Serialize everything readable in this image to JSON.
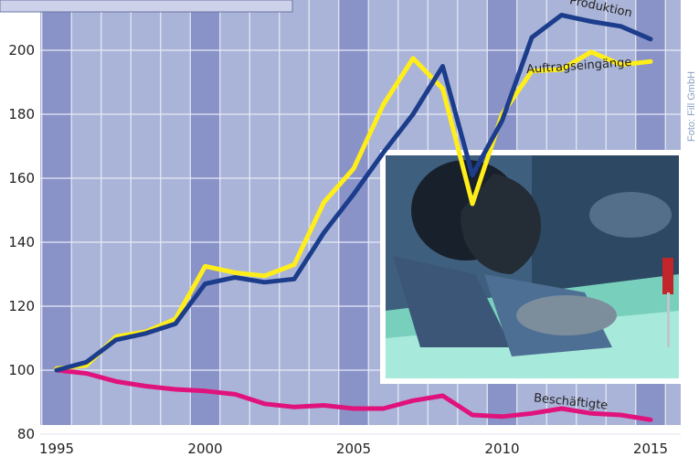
{
  "photo_credit": "Foto: Fill GmbH",
  "chart_data": {
    "type": "line",
    "xlim": [
      1995,
      2015
    ],
    "ylim": [
      80,
      210
    ],
    "grid": true,
    "x_ticks": [
      1995,
      2000,
      2005,
      2010,
      2015
    ],
    "y_ticks": [
      80,
      100,
      120,
      140,
      160,
      180,
      200
    ],
    "x": [
      1995,
      1996,
      1997,
      1998,
      1999,
      2000,
      2001,
      2002,
      2003,
      2004,
      2005,
      2006,
      2007,
      2008,
      2009,
      2010,
      2011,
      2012,
      2013,
      2014,
      2015
    ],
    "series": [
      {
        "name": "Produktion",
        "color": "#1c3d8c",
        "values": [
          100,
          102.5,
          109.5,
          111.5,
          114.5,
          127,
          129,
          127.5,
          128.5,
          143,
          155,
          168,
          180,
          195,
          161,
          178,
          204,
          211,
          209,
          207.5,
          203.5
        ]
      },
      {
        "name": "Auftragseingänge",
        "color": "#ffee1a",
        "values": [
          100.5,
          101.5,
          110.5,
          112,
          116,
          132.5,
          130.5,
          129.5,
          133,
          152.5,
          163,
          183,
          197.5,
          188,
          152,
          180,
          193.5,
          194,
          199.5,
          195.5,
          196.5
        ]
      },
      {
        "name": "Beschäftigte",
        "color": "#e0137c",
        "values": [
          100,
          99,
          96.5,
          95,
          94,
          93.5,
          92.5,
          89.5,
          88.5,
          89,
          88,
          88,
          90.5,
          92,
          86,
          85.5,
          86.5,
          88,
          86.5,
          86,
          84.5
        ]
      }
    ]
  }
}
